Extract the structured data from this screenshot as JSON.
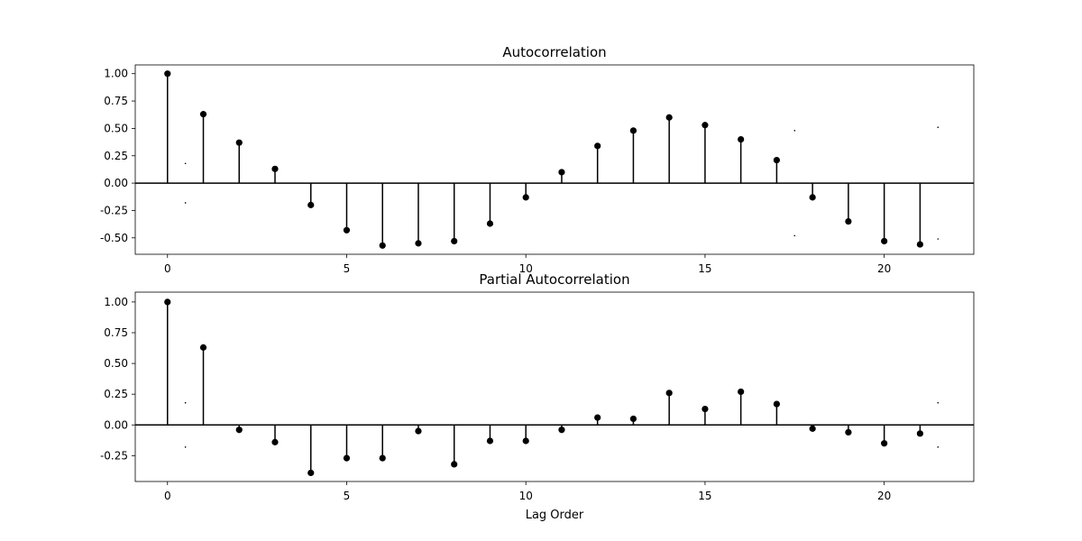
{
  "chart_data": [
    {
      "type": "stem",
      "title": "Autocorrelation",
      "xlabel": "",
      "ylabel": "",
      "xlim": [
        -0.9,
        22.5
      ],
      "ylim": [
        -0.65,
        1.08
      ],
      "xticks": [
        0,
        5,
        10,
        15,
        20
      ],
      "yticks": [
        -0.5,
        -0.25,
        0.0,
        0.25,
        0.5,
        0.75,
        1.0
      ],
      "x": [
        0,
        1,
        2,
        3,
        4,
        5,
        6,
        7,
        8,
        9,
        10,
        11,
        12,
        13,
        14,
        15,
        16,
        17,
        18,
        19,
        20,
        21
      ],
      "values": [
        1.0,
        0.63,
        0.37,
        0.13,
        -0.2,
        -0.43,
        -0.57,
        -0.55,
        -0.53,
        -0.37,
        -0.13,
        0.1,
        0.34,
        0.48,
        0.6,
        0.53,
        0.4,
        0.21,
        -0.13,
        -0.35,
        -0.53,
        -0.56
      ],
      "confidence_band": {
        "x": [
          0.5,
          17.5,
          21.5
        ],
        "upper": [
          0.18,
          0.48,
          0.51
        ],
        "lower": [
          -0.18,
          -0.48,
          -0.51
        ]
      },
      "color": "#000000"
    },
    {
      "type": "stem",
      "title": "Partial Autocorrelation",
      "xlabel": "Lag Order",
      "ylabel": "",
      "xlim": [
        -0.9,
        22.5
      ],
      "ylim": [
        -0.46,
        1.08
      ],
      "xticks": [
        0,
        5,
        10,
        15,
        20
      ],
      "yticks": [
        -0.25,
        0.0,
        0.25,
        0.5,
        0.75,
        1.0
      ],
      "x": [
        0,
        1,
        2,
        3,
        4,
        5,
        6,
        7,
        8,
        9,
        10,
        11,
        12,
        13,
        14,
        15,
        16,
        17,
        18,
        19,
        20,
        21
      ],
      "values": [
        1.0,
        0.63,
        -0.04,
        -0.14,
        -0.39,
        -0.27,
        -0.27,
        -0.05,
        -0.32,
        -0.13,
        -0.13,
        -0.04,
        0.06,
        0.05,
        0.26,
        0.13,
        0.27,
        0.17,
        -0.03,
        -0.06,
        -0.15,
        -0.07
      ],
      "confidence_band": {
        "x": [
          0.5,
          21.5
        ],
        "upper": [
          0.18,
          0.18
        ],
        "lower": [
          -0.18,
          -0.18
        ]
      },
      "color": "#000000"
    }
  ]
}
